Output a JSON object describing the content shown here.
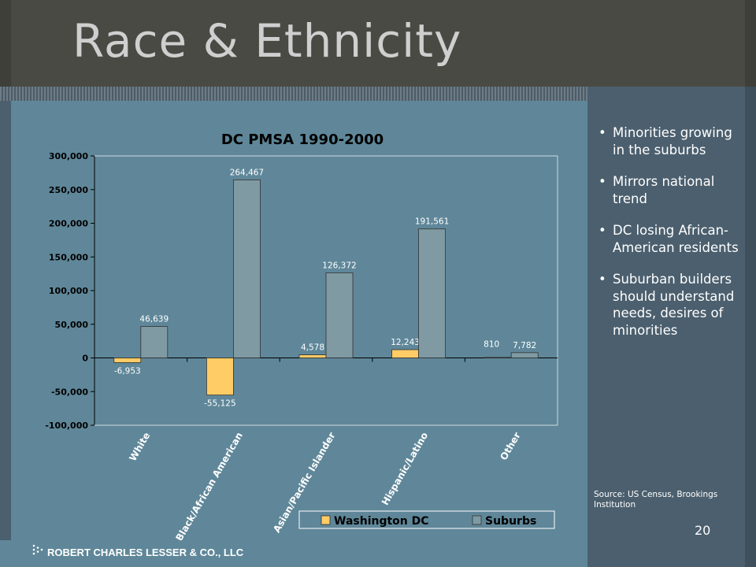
{
  "slide": {
    "title": "Race & Ethnicity",
    "bullets": [
      "Minorities growing in the suburbs",
      "Mirrors national trend",
      "DC losing African-American residents",
      "Suburban builders should understand needs, desires of minorities"
    ],
    "source": "Source: US Census, Brookings Institution",
    "page_number": "20",
    "footer": "ROBERT CHARLES LESSER & CO., LLC"
  },
  "colors": {
    "header_bg": "#4a4a44",
    "panel_bg": "#5f8799",
    "series_dc": "#ffcc66",
    "series_suburbs": "#7f9aa3",
    "title_text": "#cfcfcf"
  },
  "chart_data": {
    "type": "bar",
    "title": "DC PMSA 1990-2000",
    "categories": [
      "White",
      "Black/African American",
      "Asian/Pacific Islander",
      "Hispanic/Latino",
      "Other"
    ],
    "series": [
      {
        "name": "Washington DC",
        "values": [
          -6953,
          -55125,
          4578,
          12243,
          810
        ],
        "labels": [
          "-6,953",
          "-55,125",
          "4,578",
          "12,243",
          "810"
        ]
      },
      {
        "name": "Suburbs",
        "values": [
          46639,
          264467,
          126372,
          191561,
          7782
        ],
        "labels": [
          "46,639",
          "264,467",
          "126,372",
          "191,561",
          "7,782"
        ]
      }
    ],
    "ylim": [
      -100000,
      300000
    ],
    "yticks": [
      300000,
      250000,
      200000,
      150000,
      100000,
      50000,
      0,
      -50000,
      -100000
    ],
    "ytick_labels": [
      "300,000",
      "250,000",
      "200,000",
      "150,000",
      "100,000",
      "50,000",
      "0",
      "-50,000",
      "-100,000"
    ],
    "legend_position": "bottom-right",
    "grid": false
  }
}
